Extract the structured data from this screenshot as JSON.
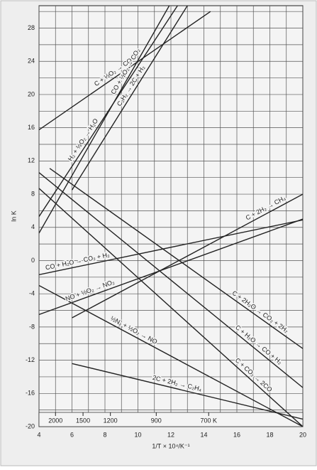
{
  "chart_data": {
    "type": "line",
    "ylabel": "ln K",
    "xlabel": "1/T × 10⁴/K⁻¹",
    "xlim": [
      4,
      20
    ],
    "ylim": [
      -20,
      30.7
    ],
    "xticks": [
      4,
      6,
      8,
      10,
      12,
      14,
      16,
      18,
      20
    ],
    "yticks": [
      -20,
      -16,
      -12,
      -8,
      -4,
      0,
      4,
      8,
      12,
      16,
      20,
      24,
      28
    ],
    "xgrid": [
      5,
      7,
      9,
      11,
      13,
      15,
      17,
      19
    ],
    "ygrid": [
      -18,
      -14,
      -10,
      -6,
      -2,
      2,
      6,
      10,
      14,
      18,
      22,
      26,
      30
    ],
    "x2ticks": [
      {
        "value": 5,
        "label": "2000"
      },
      {
        "value": 6.67,
        "label": "1500"
      },
      {
        "value": 8.33,
        "label": "1200"
      },
      {
        "value": 11.11,
        "label": "900"
      },
      {
        "value": 14.29,
        "label": "700 K"
      }
    ],
    "color": "#222222",
    "series": [
      {
        "name": "C + ½O₂ → CO",
        "x": [
          4,
          14.4
        ],
        "values": [
          15.75,
          30
        ]
      },
      {
        "name": "CO + ½O₂ → CO₂",
        "x": [
          4,
          11.9
        ],
        "values": [
          3.3,
          30.7
        ]
      },
      {
        "name": "H₂ + ½O₂ → H₂O",
        "x": [
          4,
          12.4
        ],
        "values": [
          5.3,
          30.7
        ]
      },
      {
        "name": "C₂H₂ → 2C + H₂",
        "x": [
          6,
          13
        ],
        "values": [
          8.5,
          30.7
        ]
      },
      {
        "name": "C + 2H₂O → CO₂ + 2H₂",
        "x": [
          4.65,
          20
        ],
        "values": [
          11.1,
          -10.6
        ]
      },
      {
        "name": "C + H₂O → CO + H₂",
        "x": [
          4,
          20
        ],
        "values": [
          10.6,
          -15.3
        ]
      },
      {
        "name": "C + CO₂ → 2CO",
        "x": [
          4,
          20
        ],
        "values": [
          8.7,
          -20
        ]
      },
      {
        "name": "C + 2H₂ → CH₄",
        "x": [
          6,
          20
        ],
        "values": [
          -6.9,
          8
        ]
      },
      {
        "name": "CO + H₂O → CO₂ + H₂",
        "x": [
          4,
          20
        ],
        "values": [
          -1.7,
          4.9
        ]
      },
      {
        "name": "NO + ½O₂ → NO₂",
        "x": [
          4,
          20
        ],
        "values": [
          -6.5,
          5
        ]
      },
      {
        "name": "½N₂ + ½O₂ → NO",
        "x": [
          4,
          20
        ],
        "values": [
          -3,
          -20
        ]
      },
      {
        "name": "2C + 2H₂ → C₂H₄",
        "x": [
          6,
          20
        ],
        "values": [
          -12.4,
          -19.1
        ]
      }
    ]
  }
}
